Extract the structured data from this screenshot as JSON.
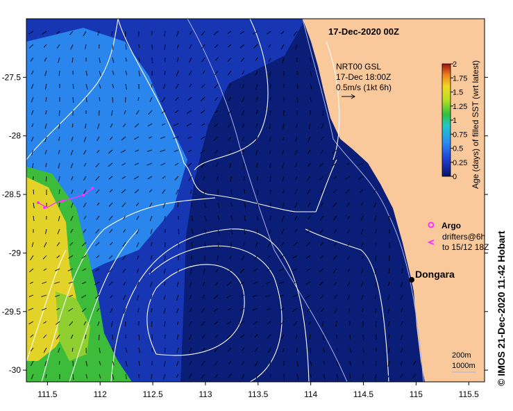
{
  "title": "17-Dec-2020 00Z",
  "current_vector_label": {
    "line1": "NRT00 GSL",
    "line2": "17-Dec 18:00Z",
    "line3": "0.5m/s (1kt 6h)"
  },
  "colorbar": {
    "label": "Age (days) of filled SST (wrt latest)",
    "min": 0,
    "max": 2,
    "ticks": [
      "0",
      "0.25",
      "0.5",
      "0.75",
      "1",
      "1.25",
      "1.5",
      "1.75",
      "2"
    ]
  },
  "legend": {
    "argo": "Argo",
    "drifters_line1": "drifters@6h",
    "drifters_line2": "to 15/12 18Z"
  },
  "place_label": "Dongara",
  "contour_legend": {
    "line1": "200m",
    "line2": "1000m"
  },
  "credit": "© IMOS 21-Dec-2020 11:42 Hobart",
  "x_ticks": [
    "111.5",
    "112",
    "112.5",
    "113",
    "113.5",
    "114",
    "114.5",
    "115",
    "115.5"
  ],
  "y_ticks": [
    "-27.5",
    "-28",
    "-28.5",
    "-29",
    "-29.5",
    "-30"
  ],
  "x_tick_values": [
    111.5,
    112,
    112.5,
    113,
    113.5,
    114,
    114.5,
    115,
    115.5
  ],
  "y_tick_values": [
    -27.5,
    -28,
    -28.5,
    -29,
    -29.5,
    -30
  ],
  "extent": {
    "lon": [
      111.3,
      115.65
    ],
    "lat": [
      -30.1,
      -27.0
    ]
  },
  "colors": {
    "deep_blue": "#0a1e78",
    "mid_blue": "#1a3fc0",
    "light_blue": "#2b8ef0",
    "green": "#3fc23a",
    "yellow": "#e8d82a",
    "land": "#f9c89b",
    "argo": "#ff30ff",
    "drifter": "#ff30ff",
    "contour": "#ffffff"
  }
}
